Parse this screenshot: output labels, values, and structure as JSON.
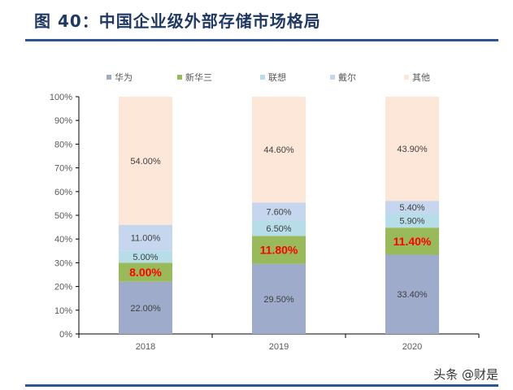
{
  "title": "图 40：中国企业级外部存储市场格局",
  "watermark": "头条 @财是",
  "chart_data": {
    "type": "stacked-bar",
    "categories": [
      "2018",
      "2019",
      "2020"
    ],
    "series": [
      {
        "name": "华为",
        "color": "#9eabcb",
        "values": [
          22.0,
          29.5,
          33.4
        ],
        "labels": [
          "22.00%",
          "29.50%",
          "33.40%"
        ]
      },
      {
        "name": "新华三",
        "color": "#98ba5a",
        "values": [
          8.0,
          11.8,
          11.4
        ],
        "labels": [
          "8.00%",
          "11.80%",
          "11.40%"
        ],
        "label_color": "#ff0000"
      },
      {
        "name": "联想",
        "color": "#b7dde9",
        "values": [
          5.0,
          6.5,
          5.9
        ],
        "labels": [
          "5.00%",
          "6.50%",
          "5.90%"
        ]
      },
      {
        "name": "戴尔",
        "color": "#c6d6ee",
        "values": [
          11.0,
          7.6,
          5.4
        ],
        "labels": [
          "11.00%",
          "7.60%",
          "5.40%"
        ]
      },
      {
        "name": "其他",
        "color": "#fde7d8",
        "values": [
          54.0,
          44.6,
          43.9
        ],
        "labels": [
          "54.00%",
          "44.60%",
          "43.90%"
        ]
      }
    ],
    "ylim": [
      0,
      100
    ],
    "yticks": [
      "0%",
      "10%",
      "20%",
      "30%",
      "40%",
      "50%",
      "60%",
      "70%",
      "80%",
      "90%",
      "100%"
    ],
    "legend": "top",
    "grid": false
  }
}
